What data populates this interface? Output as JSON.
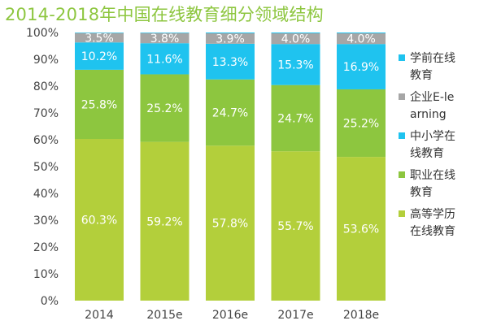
{
  "chart_data": {
    "type": "bar",
    "stacked": true,
    "title": "2014-2018年中国在线教育细分领域结构",
    "xlabel": "",
    "ylabel": "",
    "ylim": [
      0,
      100
    ],
    "y_ticks": [
      "0%",
      "10%",
      "20%",
      "30%",
      "40%",
      "50%",
      "60%",
      "70%",
      "80%",
      "90%",
      "100%"
    ],
    "categories": [
      "2014",
      "2015e",
      "2016e",
      "2017e",
      "2018e"
    ],
    "series": [
      {
        "name": "高等学历在线教育",
        "color": "#b3cf3b",
        "values": [
          60.3,
          59.2,
          57.8,
          55.7,
          53.6
        ],
        "labels": [
          "60.3%",
          "59.2%",
          "57.8%",
          "55.7%",
          "53.6%"
        ]
      },
      {
        "name": "职业在线教育",
        "color": "#8dc63f",
        "values": [
          25.8,
          25.2,
          24.7,
          24.7,
          25.2
        ],
        "labels": [
          "25.8%",
          "25.2%",
          "24.7%",
          "24.7%",
          "25.2%"
        ]
      },
      {
        "name": "中小学在线教育",
        "color": "#1fc3ef",
        "values": [
          10.2,
          11.6,
          13.3,
          15.3,
          16.9
        ],
        "labels": [
          "10.2%",
          "11.6%",
          "13.3%",
          "15.3%",
          "16.9%"
        ]
      },
      {
        "name": "企业E-learning",
        "color": "#a6a6a6",
        "values": [
          3.5,
          3.8,
          3.9,
          4.0,
          4.0
        ],
        "labels": [
          "3.5%",
          "3.8%",
          "3.9%",
          "4.0%",
          "4.0%"
        ]
      },
      {
        "name": "学前在线教育",
        "color": "#1fc3ef",
        "values": [
          0.2,
          0.2,
          0.3,
          0.3,
          0.3
        ],
        "labels": []
      }
    ],
    "legend_order": [
      "学前在线教育",
      "企业E-learning",
      "中小学在线教育",
      "职业在线教育",
      "高等学历在线教育"
    ],
    "legend_placement": "right",
    "grid": false
  }
}
